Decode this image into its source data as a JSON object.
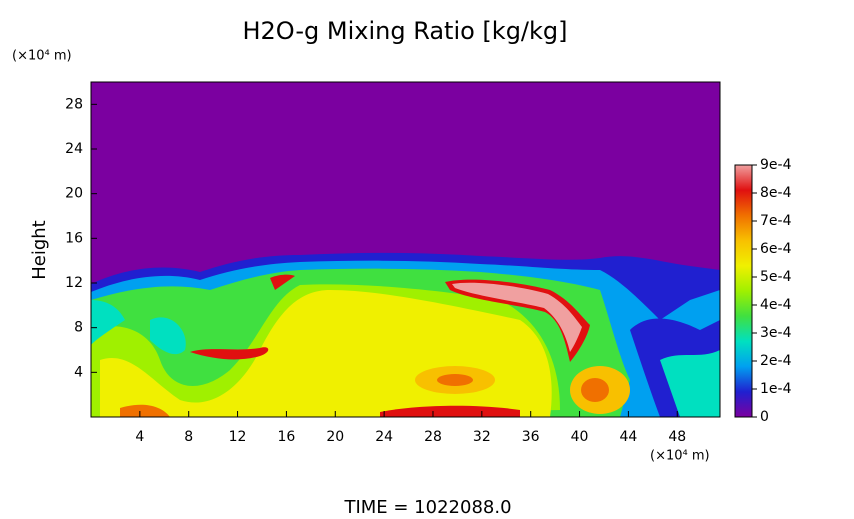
{
  "chart_data": {
    "type": "heatmap",
    "title": "H2O-g Mixing Ratio [kg/kg]",
    "y_label": "Height",
    "y_unit": "(×10⁴ m)",
    "x_unit": "(×10⁴ m)",
    "footer": "TIME = 1022088.0",
    "xlim": [
      0,
      51.5
    ],
    "xticks": [
      4,
      8,
      12,
      16,
      20,
      24,
      28,
      32,
      36,
      40,
      44,
      48
    ],
    "ylim": [
      0,
      30
    ],
    "yticks": [
      4,
      8,
      12,
      16,
      20,
      24,
      28
    ],
    "colorbar_lim": [
      0,
      0.0009
    ],
    "colorbar_ticks": [
      0,
      {
        "value": 0.0001,
        "label": "1e-4"
      },
      {
        "value": 0.0002,
        "label": "2e-4"
      },
      {
        "value": 0.0003,
        "label": "3e-4"
      },
      {
        "value": 0.0004,
        "label": "4e-4"
      },
      {
        "value": 0.0005,
        "label": "5e-4"
      },
      {
        "value": 0.0006,
        "label": "6e-4"
      },
      {
        "value": 0.0007,
        "label": "7e-4"
      },
      {
        "value": 0.0008,
        "label": "8e-4"
      },
      {
        "value": 0.0009,
        "label": "9e-4"
      }
    ],
    "colormap": [
      "#7b00a0",
      "#2020d0",
      "#00a0f0",
      "#00e0c0",
      "#40e040",
      "#a0f000",
      "#f0f000",
      "#f8c000",
      "#f07000",
      "#e01010",
      "#f0a0a0"
    ]
  }
}
